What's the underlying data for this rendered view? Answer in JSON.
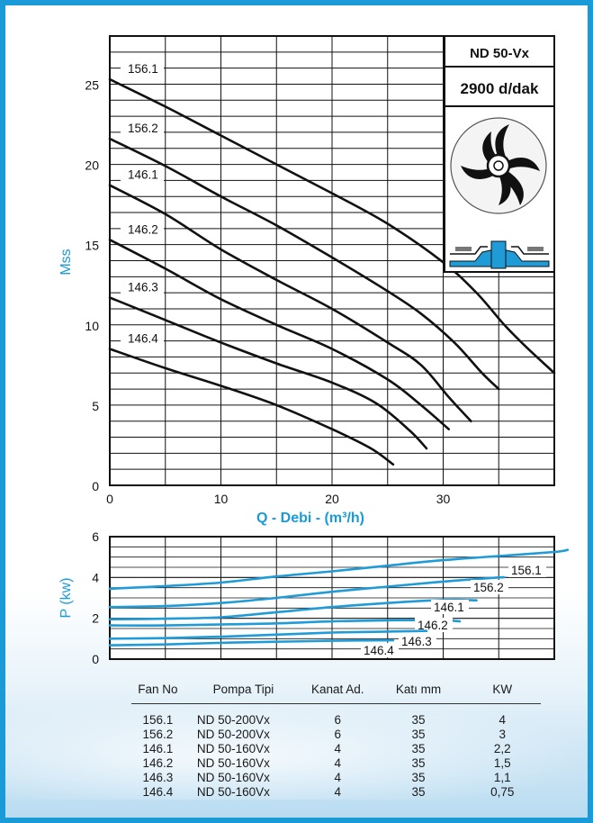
{
  "model_box": {
    "model": "ND 50-Vx",
    "speed": "2900 d/dak"
  },
  "chart_data": [
    {
      "type": "line",
      "title": "",
      "xlabel": "Q - Debi - (m³/h)",
      "ylabel": "Mss",
      "xlim": [
        0,
        40
      ],
      "ylim": [
        0,
        28
      ],
      "x_ticks": [
        0,
        10,
        20,
        30
      ],
      "y_ticks": [
        0,
        5,
        10,
        15,
        20,
        25
      ],
      "grid": true,
      "series": [
        {
          "name": "156.1",
          "points": [
            [
              0,
              25.3
            ],
            [
              5,
              23.6
            ],
            [
              10,
              21.8
            ],
            [
              15,
              20.0
            ],
            [
              20,
              18.2
            ],
            [
              25,
              16.3
            ],
            [
              30,
              13.9
            ],
            [
              33,
              12.0
            ],
            [
              35.5,
              10.0
            ],
            [
              37.5,
              8.6
            ],
            [
              40,
              7.0
            ]
          ]
        },
        {
          "name": "156.2",
          "points": [
            [
              0,
              21.6
            ],
            [
              5,
              19.9
            ],
            [
              10,
              18.0
            ],
            [
              15,
              16.2
            ],
            [
              20,
              14.2
            ],
            [
              25,
              12.1
            ],
            [
              28,
              10.7
            ],
            [
              31,
              8.9
            ],
            [
              33.5,
              7.0
            ],
            [
              35,
              6.0
            ]
          ]
        },
        {
          "name": "146.1",
          "points": [
            [
              0,
              18.7
            ],
            [
              5,
              16.9
            ],
            [
              10,
              14.7
            ],
            [
              15,
              12.8
            ],
            [
              20,
              11.0
            ],
            [
              25,
              8.9
            ],
            [
              28,
              7.5
            ],
            [
              30.5,
              5.5
            ],
            [
              32.5,
              4.0
            ]
          ]
        },
        {
          "name": "146.2",
          "points": [
            [
              0,
              15.3
            ],
            [
              5,
              13.5
            ],
            [
              10,
              11.6
            ],
            [
              15,
              10.0
            ],
            [
              20,
              8.5
            ],
            [
              25,
              6.6
            ],
            [
              28,
              5.0
            ],
            [
              30.5,
              3.5
            ]
          ]
        },
        {
          "name": "146.3",
          "points": [
            [
              0,
              11.7
            ],
            [
              5,
              10.3
            ],
            [
              10,
              8.9
            ],
            [
              15,
              7.6
            ],
            [
              20,
              6.4
            ],
            [
              24,
              5.1
            ],
            [
              27,
              3.4
            ],
            [
              28.5,
              2.3
            ]
          ]
        },
        {
          "name": "146.4",
          "points": [
            [
              0,
              8.5
            ],
            [
              5,
              7.3
            ],
            [
              10,
              6.2
            ],
            [
              15,
              5.0
            ],
            [
              20,
              3.5
            ],
            [
              23.5,
              2.3
            ],
            [
              25.5,
              1.3
            ]
          ]
        }
      ]
    },
    {
      "type": "line",
      "title": "",
      "xlabel": "",
      "ylabel": "P  (kw)",
      "xlim": [
        0,
        40
      ],
      "ylim": [
        0,
        6
      ],
      "y_ticks": [
        0,
        2,
        4,
        6
      ],
      "grid": true,
      "series": [
        {
          "name": "156.1",
          "points": [
            [
              0,
              3.45
            ],
            [
              5,
              3.58
            ],
            [
              10,
              3.75
            ],
            [
              15,
              4.05
            ],
            [
              20,
              4.3
            ],
            [
              25,
              4.58
            ],
            [
              30,
              4.85
            ],
            [
              35,
              5.05
            ],
            [
              40,
              5.25
            ],
            [
              41.2,
              5.35
            ]
          ]
        },
        {
          "name": "156.2",
          "points": [
            [
              0,
              2.55
            ],
            [
              5,
              2.6
            ],
            [
              10,
              2.75
            ],
            [
              15,
              3.0
            ],
            [
              20,
              3.3
            ],
            [
              25,
              3.55
            ],
            [
              30,
              3.8
            ],
            [
              35,
              4.0
            ],
            [
              35.3,
              4.0
            ]
          ]
        },
        {
          "name": "146.1",
          "points": [
            [
              0,
              1.95
            ],
            [
              5,
              1.98
            ],
            [
              10,
              2.05
            ],
            [
              15,
              2.3
            ],
            [
              20,
              2.55
            ],
            [
              25,
              2.75
            ],
            [
              30,
              2.9
            ],
            [
              33,
              2.88
            ]
          ]
        },
        {
          "name": "146.2",
          "points": [
            [
              0,
              1.65
            ],
            [
              5,
              1.65
            ],
            [
              10,
              1.7
            ],
            [
              15,
              1.75
            ],
            [
              20,
              1.85
            ],
            [
              25,
              1.9
            ],
            [
              30,
              1.9
            ],
            [
              31.5,
              1.85
            ]
          ]
        },
        {
          "name": "146.3",
          "points": [
            [
              0,
              1.0
            ],
            [
              5,
              1.03
            ],
            [
              10,
              1.1
            ],
            [
              15,
              1.2
            ],
            [
              20,
              1.3
            ],
            [
              25,
              1.35
            ],
            [
              28.5,
              1.38
            ]
          ]
        },
        {
          "name": "146.4",
          "points": [
            [
              0,
              0.68
            ],
            [
              5,
              0.72
            ],
            [
              10,
              0.8
            ],
            [
              15,
              0.85
            ],
            [
              20,
              0.9
            ],
            [
              25.5,
              0.92
            ]
          ]
        }
      ]
    }
  ],
  "table": {
    "headers": [
      "Fan No",
      "Pompa Tipi",
      "Kanat Ad.",
      "Katı mm",
      "KW"
    ],
    "rows": [
      [
        "156.1",
        "ND 50-200Vx",
        "6",
        "35",
        "4"
      ],
      [
        "156.2",
        "ND 50-200Vx",
        "6",
        "35",
        "3"
      ],
      [
        "146.1",
        "ND 50-160Vx",
        "4",
        "35",
        "2,2"
      ],
      [
        "146.2",
        "ND 50-160Vx",
        "4",
        "35",
        "1,5"
      ],
      [
        "146.3",
        "ND 50-160Vx",
        "4",
        "35",
        "1,1"
      ],
      [
        "146.4",
        "ND 50-160Vx",
        "4",
        "35",
        "0,75"
      ]
    ]
  },
  "colors": {
    "frame": "#1a9ad6",
    "accent_text": "#1a9ad6",
    "power_curves": "#1f9cd8",
    "head_curves": "#111111",
    "grid": "#111111"
  }
}
